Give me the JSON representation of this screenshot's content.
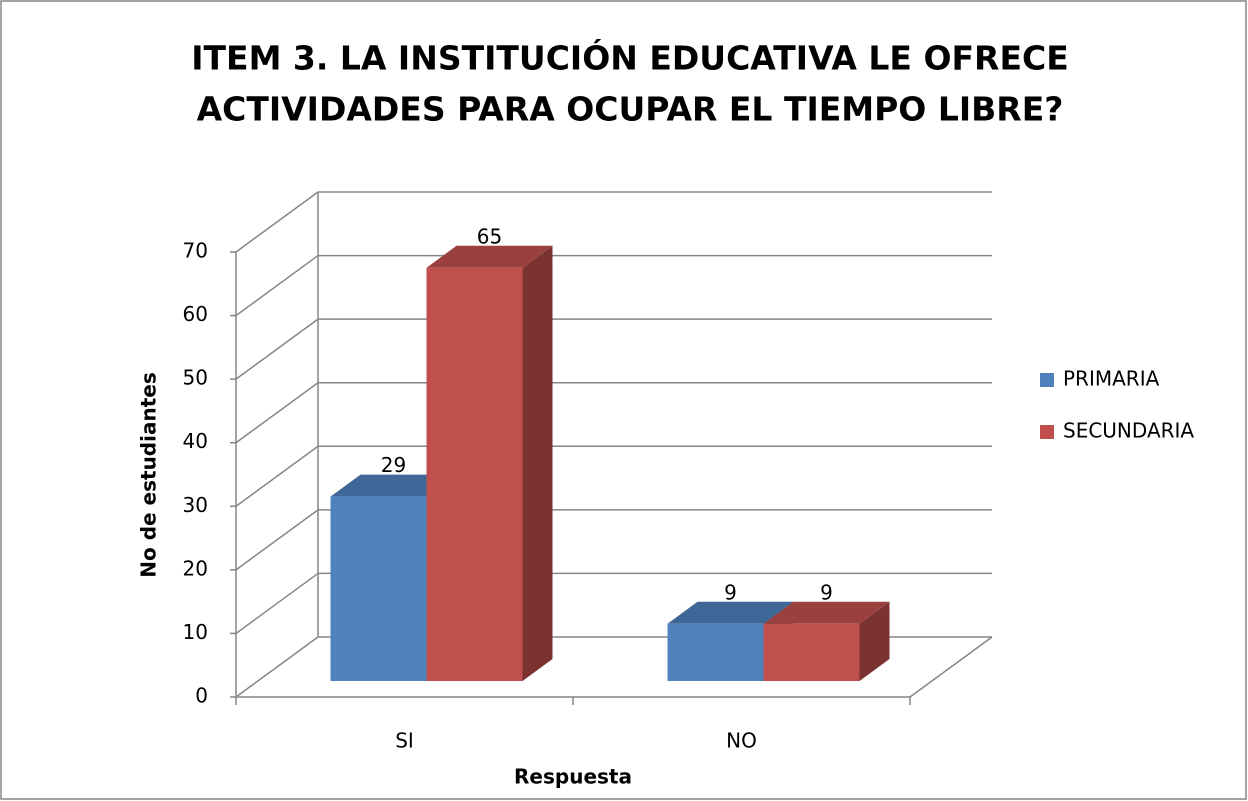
{
  "chart_data": {
    "type": "bar3d",
    "title": [
      "ITEM 3. LA INSTITUCIÓN EDUCATIVA LE OFRECE",
      "ACTIVIDADES PARA OCUPAR EL TIEMPO LIBRE?"
    ],
    "categories": [
      "SI",
      "NO"
    ],
    "series": [
      {
        "name": "PRIMARIA",
        "color": "#4f81bd",
        "values": [
          29,
          9
        ]
      },
      {
        "name": "SECUNDARIA",
        "color": "#c0504d",
        "values": [
          65,
          9
        ]
      }
    ],
    "xlabel": "Respuesta",
    "ylabel": "No de estudiantes",
    "ylim": [
      0,
      70
    ],
    "yticks": [
      0,
      10,
      20,
      30,
      40,
      50,
      60,
      70
    ],
    "grid": true,
    "legend": "right"
  }
}
